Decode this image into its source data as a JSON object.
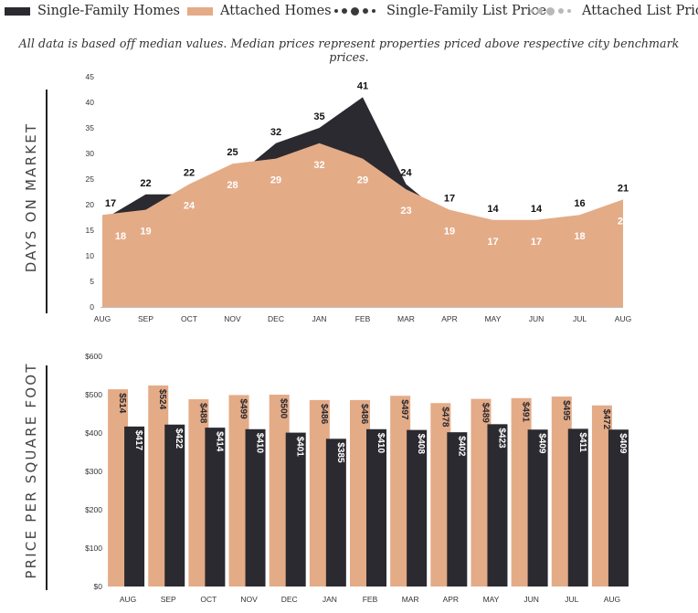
{
  "legend": {
    "sf_homes": "Single-Family Homes",
    "attached_homes": "Attached Homes",
    "sf_list_price": "Single-Family List Price",
    "attached_list_price": "Attached List Price"
  },
  "note": "All data is based off median values. Median prices represent properties priced above respective city benchmark prices.",
  "colors": {
    "single_family": "#2b2a30",
    "attached": "#e4ab87",
    "axis": "#222222",
    "sf_dots": "#3a3a3a",
    "attached_dots": "#b9b9b9"
  },
  "chart_data": [
    {
      "type": "area",
      "ylabel": "DAYS ON MARKET",
      "ylim": [
        0,
        45
      ],
      "yticks": [
        0,
        5,
        10,
        15,
        20,
        25,
        30,
        35,
        40,
        45
      ],
      "categories": [
        "AUG",
        "SEP",
        "OCT",
        "NOV",
        "DEC",
        "JAN",
        "FEB",
        "MAR",
        "APR",
        "MAY",
        "JUN",
        "JUL",
        "AUG"
      ],
      "series": [
        {
          "name": "Single-Family Homes",
          "values": [
            17,
            22,
            22,
            25,
            32,
            35,
            41,
            24,
            17,
            14,
            14,
            16,
            21
          ]
        },
        {
          "name": "Attached Homes",
          "values": [
            18,
            19,
            24,
            28,
            29,
            32,
            29,
            23,
            19,
            17,
            17,
            18,
            21
          ]
        }
      ]
    },
    {
      "type": "bar",
      "ylabel": "PRICE PER SQUARE FOOT",
      "ylim": [
        0,
        600
      ],
      "yticks": [
        "$0",
        "$100",
        "$200",
        "$300",
        "$400",
        "$500",
        "$600"
      ],
      "categories": [
        "AUG",
        "SEP",
        "OCT",
        "NOV",
        "DEC",
        "JAN",
        "FEB",
        "MAR",
        "APR",
        "MAY",
        "JUN",
        "JUL",
        "AUG"
      ],
      "series": [
        {
          "name": "Attached Homes",
          "values": [
            514,
            524,
            488,
            499,
            500,
            486,
            486,
            497,
            478,
            489,
            491,
            495,
            472
          ]
        },
        {
          "name": "Single-Family Homes",
          "values": [
            417,
            422,
            414,
            410,
            401,
            385,
            410,
            408,
            402,
            423,
            409,
            411,
            409
          ]
        }
      ]
    }
  ]
}
